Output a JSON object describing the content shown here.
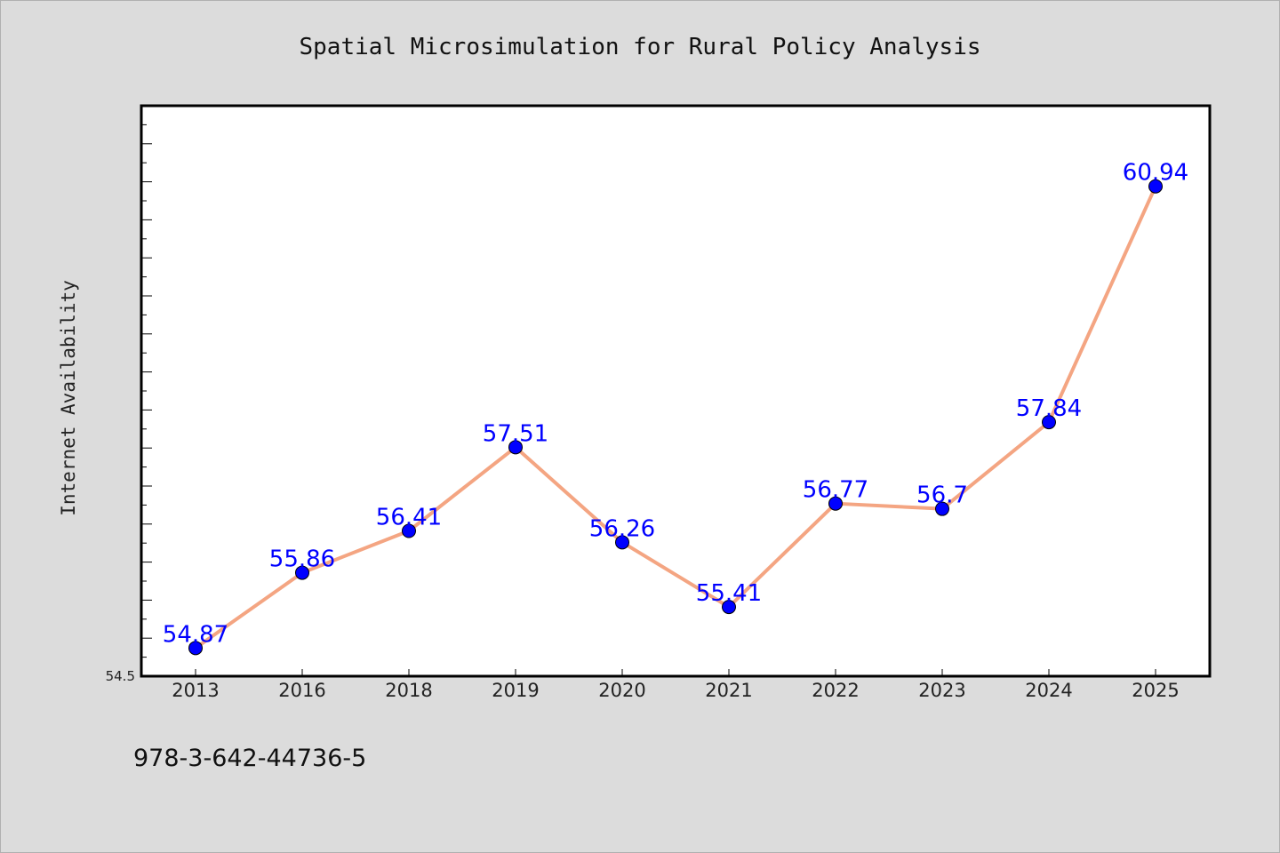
{
  "chart_data": {
    "type": "line",
    "title": "Spatial Microsimulation for Rural Policy Analysis",
    "xlabel": "",
    "ylabel": "Internet Availability",
    "categories": [
      "2013",
      "2016",
      "2018",
      "2019",
      "2020",
      "2021",
      "2022",
      "2023",
      "2024",
      "2025"
    ],
    "series": [
      {
        "values": [
          54.87,
          55.86,
          56.41,
          57.51,
          56.26,
          55.41,
          56.77,
          56.7,
          57.84,
          60.94
        ],
        "labels": [
          "54.87",
          "55.86",
          "56.41",
          "57.51",
          "56.26",
          "55.41",
          "56.77",
          "56.7",
          "57.84",
          "60.94"
        ]
      }
    ],
    "ylim": [
      54.5,
      62.0
    ],
    "yticks_labeled": [
      "54.5"
    ],
    "grid": false,
    "legend": "none",
    "colors": {
      "line": "#f4a582",
      "marker": "#0000ff",
      "marker_edge": "#000000",
      "data_label": "#0000ff",
      "plot_bg": "#ffffff",
      "page_bg": "#dcdcdc"
    }
  },
  "footer": {
    "isbn": "978-3-642-44736-5"
  }
}
